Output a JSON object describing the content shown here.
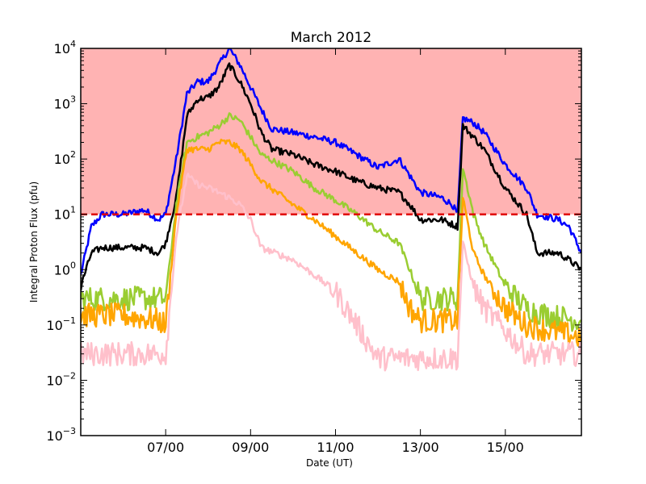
{
  "chart_data": {
    "type": "line",
    "title": "March 2012",
    "xlabel": "Date (UT)",
    "ylabel": "Integral Proton Flux (pfu)",
    "y_scale": "log",
    "ylim": [
      0.001,
      10000
    ],
    "xlim": [
      "2012-03-05 00:00",
      "2012-03-16 19:00"
    ],
    "x_ticks": [
      {
        "x": "2012-03-07 00:00",
        "label": "07/00"
      },
      {
        "x": "2012-03-09 00:00",
        "label": "09/00"
      },
      {
        "x": "2012-03-11 00:00",
        "label": "11/00"
      },
      {
        "x": "2012-03-13 00:00",
        "label": "13/00"
      },
      {
        "x": "2012-03-15 00:00",
        "label": "15/00"
      }
    ],
    "y_ticks": [
      {
        "y": 0.001,
        "base": "10",
        "exp": "−3"
      },
      {
        "y": 0.01,
        "base": "10",
        "exp": "−2"
      },
      {
        "y": 0.1,
        "base": "10",
        "exp": "−1"
      },
      {
        "y": 1,
        "base": "10",
        "exp": "0"
      },
      {
        "y": 10,
        "base": "10",
        "exp": "1"
      },
      {
        "y": 100,
        "base": "10",
        "exp": "2"
      },
      {
        "y": 1000,
        "base": "10",
        "exp": "3"
      },
      {
        "y": 10000,
        "base": "10",
        "exp": "4"
      }
    ],
    "threshold": {
      "y": 10,
      "color": "#e00000",
      "style": "dashed"
    },
    "shaded_region": {
      "y_from": 10,
      "y_to": 10000,
      "color": "#ffb3b3"
    },
    "grid": false,
    "legend": "none",
    "series": [
      {
        "color": "#0000ff",
        "points": [
          [
            "2012-03-05 00:00",
            0.8
          ],
          [
            "2012-03-05 06:00",
            6
          ],
          [
            "2012-03-05 12:00",
            10
          ],
          [
            "2012-03-06 00:00",
            10
          ],
          [
            "2012-03-06 12:00",
            12
          ],
          [
            "2012-03-06 20:00",
            8
          ],
          [
            "2012-03-07 00:00",
            10
          ],
          [
            "2012-03-07 06:00",
            100
          ],
          [
            "2012-03-07 12:00",
            1500
          ],
          [
            "2012-03-07 18:00",
            2500
          ],
          [
            "2012-03-08 00:00",
            2500
          ],
          [
            "2012-03-08 06:00",
            5000
          ],
          [
            "2012-03-08 12:00",
            10000
          ],
          [
            "2012-03-08 18:00",
            5000
          ],
          [
            "2012-03-09 00:00",
            2000
          ],
          [
            "2012-03-09 06:00",
            800
          ],
          [
            "2012-03-09 12:00",
            350
          ],
          [
            "2012-03-10 00:00",
            300
          ],
          [
            "2012-03-10 12:00",
            250
          ],
          [
            "2012-03-11 00:00",
            200
          ],
          [
            "2012-03-11 12:00",
            120
          ],
          [
            "2012-03-12 00:00",
            70
          ],
          [
            "2012-03-12 12:00",
            100
          ],
          [
            "2012-03-12 18:00",
            50
          ],
          [
            "2012-03-13 00:00",
            25
          ],
          [
            "2012-03-13 12:00",
            20
          ],
          [
            "2012-03-13 18:00",
            15
          ],
          [
            "2012-03-13 21:00",
            10
          ],
          [
            "2012-03-14 00:00",
            550
          ],
          [
            "2012-03-14 06:00",
            450
          ],
          [
            "2012-03-14 12:00",
            300
          ],
          [
            "2012-03-15 00:00",
            80
          ],
          [
            "2012-03-15 12:00",
            30
          ],
          [
            "2012-03-15 18:00",
            10
          ],
          [
            "2012-03-16 06:00",
            8
          ],
          [
            "2012-03-16 12:00",
            6
          ],
          [
            "2012-03-16 19:00",
            2
          ]
        ]
      },
      {
        "color": "#000000",
        "points": [
          [
            "2012-03-05 00:00",
            0.5
          ],
          [
            "2012-03-05 06:00",
            2
          ],
          [
            "2012-03-05 12:00",
            2.5
          ],
          [
            "2012-03-06 00:00",
            2.5
          ],
          [
            "2012-03-06 12:00",
            2.5
          ],
          [
            "2012-03-06 20:00",
            2
          ],
          [
            "2012-03-07 00:00",
            3
          ],
          [
            "2012-03-07 06:00",
            20
          ],
          [
            "2012-03-07 12:00",
            600
          ],
          [
            "2012-03-07 18:00",
            1200
          ],
          [
            "2012-03-08 00:00",
            1300
          ],
          [
            "2012-03-08 06:00",
            2000
          ],
          [
            "2012-03-08 12:00",
            5000
          ],
          [
            "2012-03-08 18:00",
            2500
          ],
          [
            "2012-03-09 00:00",
            1000
          ],
          [
            "2012-03-09 06:00",
            300
          ],
          [
            "2012-03-09 12:00",
            150
          ],
          [
            "2012-03-10 00:00",
            120
          ],
          [
            "2012-03-10 12:00",
            80
          ],
          [
            "2012-03-11 00:00",
            60
          ],
          [
            "2012-03-11 12:00",
            40
          ],
          [
            "2012-03-12 00:00",
            30
          ],
          [
            "2012-03-12 12:00",
            25
          ],
          [
            "2012-03-12 18:00",
            15
          ],
          [
            "2012-03-13 00:00",
            8
          ],
          [
            "2012-03-13 12:00",
            8
          ],
          [
            "2012-03-13 21:00",
            6
          ],
          [
            "2012-03-14 00:00",
            400
          ],
          [
            "2012-03-14 06:00",
            250
          ],
          [
            "2012-03-14 12:00",
            150
          ],
          [
            "2012-03-15 00:00",
            30
          ],
          [
            "2012-03-15 12:00",
            10
          ],
          [
            "2012-03-15 18:00",
            2
          ],
          [
            "2012-03-16 06:00",
            2
          ],
          [
            "2012-03-16 12:00",
            1.5
          ],
          [
            "2012-03-16 19:00",
            1
          ]
        ]
      },
      {
        "color": "#9acd32",
        "points": [
          [
            "2012-03-05 00:00",
            0.3
          ],
          [
            "2012-03-06 00:00",
            0.3
          ],
          [
            "2012-03-06 20:00",
            0.3
          ],
          [
            "2012-03-07 00:00",
            0.3
          ],
          [
            "2012-03-07 06:00",
            15
          ],
          [
            "2012-03-07 12:00",
            200
          ],
          [
            "2012-03-07 18:00",
            250
          ],
          [
            "2012-03-08 00:00",
            300
          ],
          [
            "2012-03-08 06:00",
            400
          ],
          [
            "2012-03-08 12:00",
            600
          ],
          [
            "2012-03-08 18:00",
            500
          ],
          [
            "2012-03-09 00:00",
            250
          ],
          [
            "2012-03-09 06:00",
            120
          ],
          [
            "2012-03-10 00:00",
            60
          ],
          [
            "2012-03-10 12:00",
            30
          ],
          [
            "2012-03-11 00:00",
            18
          ],
          [
            "2012-03-11 12:00",
            10
          ],
          [
            "2012-03-12 00:00",
            5
          ],
          [
            "2012-03-12 12:00",
            3
          ],
          [
            "2012-03-12 18:00",
            1
          ],
          [
            "2012-03-13 00:00",
            0.3
          ],
          [
            "2012-03-13 12:00",
            0.3
          ],
          [
            "2012-03-13 21:00",
            0.3
          ],
          [
            "2012-03-14 00:00",
            70
          ],
          [
            "2012-03-14 06:00",
            10
          ],
          [
            "2012-03-14 12:00",
            3
          ],
          [
            "2012-03-15 00:00",
            0.5
          ],
          [
            "2012-03-15 12:00",
            0.2
          ],
          [
            "2012-03-16 00:00",
            0.15
          ],
          [
            "2012-03-16 19:00",
            0.12
          ]
        ]
      },
      {
        "color": "#ffa500",
        "points": [
          [
            "2012-03-05 00:00",
            0.15
          ],
          [
            "2012-03-06 00:00",
            0.15
          ],
          [
            "2012-03-06 20:00",
            0.12
          ],
          [
            "2012-03-07 00:00",
            0.1
          ],
          [
            "2012-03-07 06:00",
            10
          ],
          [
            "2012-03-07 12:00",
            150
          ],
          [
            "2012-03-07 18:00",
            150
          ],
          [
            "2012-03-08 00:00",
            150
          ],
          [
            "2012-03-08 06:00",
            200
          ],
          [
            "2012-03-08 12:00",
            200
          ],
          [
            "2012-03-08 18:00",
            150
          ],
          [
            "2012-03-09 00:00",
            80
          ],
          [
            "2012-03-09 06:00",
            40
          ],
          [
            "2012-03-10 00:00",
            15
          ],
          [
            "2012-03-10 12:00",
            8
          ],
          [
            "2012-03-11 00:00",
            4
          ],
          [
            "2012-03-11 12:00",
            2
          ],
          [
            "2012-03-12 00:00",
            1
          ],
          [
            "2012-03-12 12:00",
            0.6
          ],
          [
            "2012-03-12 18:00",
            0.2
          ],
          [
            "2012-03-13 00:00",
            0.12
          ],
          [
            "2012-03-13 12:00",
            0.12
          ],
          [
            "2012-03-13 21:00",
            0.12
          ],
          [
            "2012-03-14 00:00",
            20
          ],
          [
            "2012-03-14 06:00",
            2
          ],
          [
            "2012-03-14 12:00",
            0.8
          ],
          [
            "2012-03-15 00:00",
            0.2
          ],
          [
            "2012-03-15 12:00",
            0.1
          ],
          [
            "2012-03-16 00:00",
            0.08
          ],
          [
            "2012-03-16 19:00",
            0.06
          ]
        ]
      },
      {
        "color": "#ffc0cb",
        "points": [
          [
            "2012-03-05 00:00",
            0.03
          ],
          [
            "2012-03-06 00:00",
            0.03
          ],
          [
            "2012-03-06 20:00",
            0.03
          ],
          [
            "2012-03-07 00:00",
            0.03
          ],
          [
            "2012-03-07 06:00",
            4
          ],
          [
            "2012-03-07 12:00",
            50
          ],
          [
            "2012-03-07 18:00",
            35
          ],
          [
            "2012-03-08 00:00",
            30
          ],
          [
            "2012-03-08 06:00",
            25
          ],
          [
            "2012-03-08 12:00",
            20
          ],
          [
            "2012-03-08 18:00",
            15
          ],
          [
            "2012-03-09 00:00",
            8
          ],
          [
            "2012-03-09 06:00",
            2.5
          ],
          [
            "2012-03-10 00:00",
            1.5
          ],
          [
            "2012-03-10 12:00",
            0.8
          ],
          [
            "2012-03-11 00:00",
            0.4
          ],
          [
            "2012-03-11 12:00",
            0.1
          ],
          [
            "2012-03-11 18:00",
            0.05
          ],
          [
            "2012-03-12 00:00",
            0.025
          ],
          [
            "2012-03-12 12:00",
            0.025
          ],
          [
            "2012-03-12 18:00",
            0.025
          ],
          [
            "2012-03-13 00:00",
            0.025
          ],
          [
            "2012-03-13 12:00",
            0.025
          ],
          [
            "2012-03-13 21:00",
            0.025
          ],
          [
            "2012-03-14 00:00",
            3
          ],
          [
            "2012-03-14 06:00",
            0.5
          ],
          [
            "2012-03-14 12:00",
            0.2
          ],
          [
            "2012-03-15 00:00",
            0.08
          ],
          [
            "2012-03-15 12:00",
            0.03
          ],
          [
            "2012-03-16 00:00",
            0.03
          ],
          [
            "2012-03-16 19:00",
            0.03
          ]
        ]
      }
    ]
  }
}
